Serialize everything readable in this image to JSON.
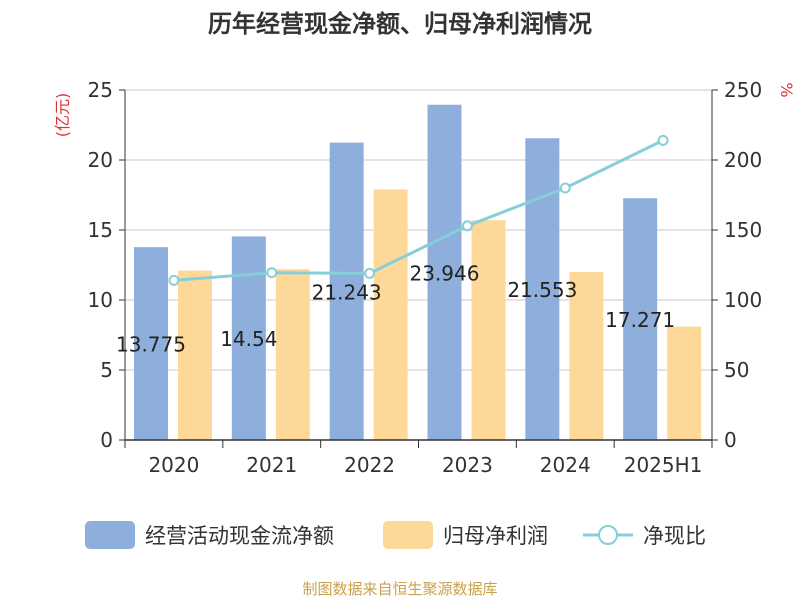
{
  "chart_data": {
    "type": "bar",
    "title": "历年经营现金净额、归母净利润情况",
    "categories": [
      "2020",
      "2021",
      "2022",
      "2023",
      "2024",
      "2025H1"
    ],
    "ylabel_left": "(亿元)",
    "ylabel_right": "%",
    "ylim_left": [
      0,
      25
    ],
    "ylim_right": [
      0,
      250
    ],
    "yticks_left": [
      "0",
      "5",
      "10",
      "15",
      "20",
      "25"
    ],
    "yticks_right": [
      "0",
      "50",
      "100",
      "150",
      "200",
      "250"
    ],
    "grid": true,
    "legend_position": "bottom",
    "series": [
      {
        "name": "经营活动现金流净额",
        "kind": "bar",
        "axis": "left",
        "color": "#8eaedb",
        "values": [
          13.775,
          14.54,
          21.243,
          23.946,
          21.553,
          17.271
        ],
        "labels": [
          "13.775",
          "14.54",
          "21.243",
          "23.946",
          "21.553",
          "17.271"
        ]
      },
      {
        "name": "归母净利润",
        "kind": "bar",
        "axis": "left",
        "color": "#fed899",
        "values": [
          12.1,
          12.2,
          17.9,
          15.7,
          12.0,
          8.1
        ]
      },
      {
        "name": "净现比",
        "kind": "line",
        "axis": "right",
        "color": "#86cfd8",
        "values": [
          114,
          119.5,
          119,
          153,
          180,
          214
        ]
      }
    ]
  },
  "source": "制图数据来自恒生聚源数据库"
}
